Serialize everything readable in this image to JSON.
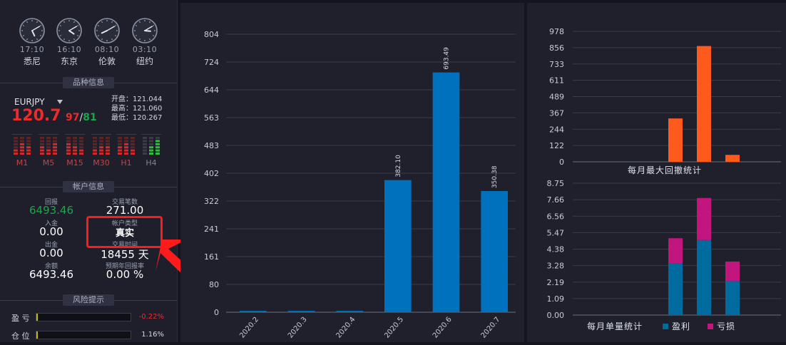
{
  "clocks": [
    {
      "time": "17:10",
      "city": "悉尼",
      "hour": 17,
      "minute": 10
    },
    {
      "time": "16:10",
      "city": "东京",
      "hour": 16,
      "minute": 10
    },
    {
      "time": "08:10",
      "city": "伦敦",
      "hour": 8,
      "minute": 10
    },
    {
      "time": "03:10",
      "city": "纽约",
      "hour": 3,
      "minute": 10
    }
  ],
  "symbol_info": {
    "header": "品种信息",
    "symbol": "EURJPY",
    "price_main": "120.7",
    "price_bid": "97",
    "price_sep": "/",
    "price_ask": "81",
    "open_label": "开盘：",
    "open_value": "121.044",
    "high_label": "最高：",
    "high_value": "121.060",
    "low_label": "最低：",
    "low_value": "120.267",
    "timeframes": [
      "M1",
      "M5",
      "M15",
      "M30",
      "H1",
      "H4"
    ],
    "colors": {
      "price": "#ef2a2a",
      "ask": "#1fa34a",
      "timeframe": "#c04646",
      "h4": "#808490"
    }
  },
  "account": {
    "header": "帐户信息",
    "return_label": "回报",
    "return_value": "6493.46",
    "trades_label": "交易笔数",
    "trades_value": "271.00",
    "deposit_label": "入金",
    "deposit_value": "0.00",
    "type_label": "帐户类型",
    "type_value": "真实",
    "withdraw_label": "出金",
    "withdraw_value": "0.00",
    "time_label": "交易时间",
    "time_value": "18455 天",
    "balance_label": "余额",
    "balance_value": "6493.46",
    "annual_label": "预期年回报率",
    "annual_value": "0.00 %"
  },
  "risk": {
    "header": "风险提示",
    "profit_label": "盈 亏",
    "profit_value": "-0.22%",
    "position_label": "仓 位",
    "position_value": "1.16%"
  },
  "chart_data": [
    {
      "type": "bar",
      "categories": [
        "2020.2",
        "2020.3",
        "2020.4",
        "2020.5",
        "2020.6",
        "2020.7"
      ],
      "values": [
        4,
        4,
        4,
        382.1,
        693.49,
        350.38
      ],
      "data_labels": [
        "",
        "",
        "",
        "382.10",
        "693.49",
        "350.38"
      ],
      "yticks": [
        "0",
        "80",
        "161",
        "241",
        "322",
        "402",
        "483",
        "563",
        "644",
        "724",
        "804"
      ],
      "ylim": [
        0,
        804
      ],
      "color": "#0071bc",
      "grid": true
    },
    {
      "type": "bar",
      "title": "每月最大回撤统计",
      "values": [
        0,
        0,
        0,
        325,
        868,
        52
      ],
      "yticks": [
        "0",
        "122",
        "244",
        "367",
        "489",
        "611",
        "733",
        "856",
        "978"
      ],
      "ylim": [
        0,
        978
      ],
      "color": "#ff5a1e",
      "grid": true
    },
    {
      "type": "bar",
      "stacked": true,
      "title": "每月单量统计",
      "series": [
        {
          "name": "盈利",
          "values": [
            0,
            0,
            0,
            3.45,
            4.98,
            2.25
          ],
          "color": "#006b9e"
        },
        {
          "name": "亏损",
          "values": [
            0,
            0,
            0,
            1.65,
            2.79,
            1.3
          ],
          "color": "#c2157e"
        }
      ],
      "yticks": [
        "0.00",
        "1.09",
        "2.19",
        "3.28",
        "4.38",
        "5.47",
        "6.56",
        "7.66",
        "8.75"
      ],
      "ylim": [
        0,
        8.75
      ],
      "grid": true,
      "legend": "bottom"
    }
  ]
}
